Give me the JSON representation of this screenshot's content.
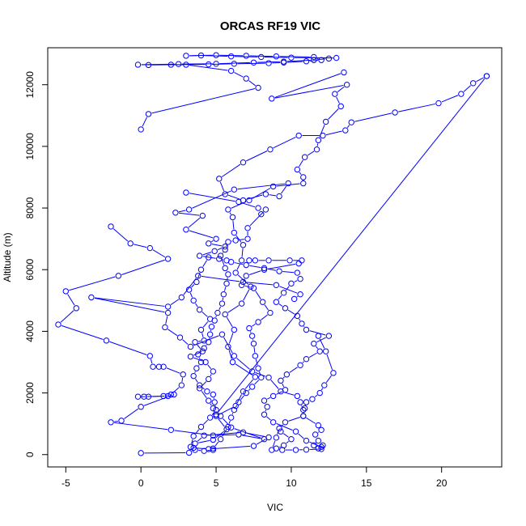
{
  "chart_data": {
    "type": "scatter",
    "title": "ORCAS RF19 VIC",
    "xlabel": "VIC",
    "ylabel": "Altitude (m)",
    "xlim": [
      -6.2,
      24.0
    ],
    "ylim": [
      -400,
      13200
    ],
    "xticks": [
      -5,
      0,
      5,
      10,
      15,
      20
    ],
    "yticks": [
      0,
      2000,
      4000,
      6000,
      8000,
      10000,
      12000
    ],
    "grid": false,
    "style": "points connected by lines (type b)",
    "color": "#0000ff",
    "series": [
      {
        "points": [
          [
            0.0,
            50
          ],
          [
            3.2,
            60
          ],
          [
            3.5,
            220
          ],
          [
            4.5,
            180
          ],
          [
            7.5,
            280
          ],
          [
            8.5,
            560
          ],
          [
            6.8,
            720
          ],
          [
            4.2,
            620
          ],
          [
            3.6,
            360
          ],
          [
            4.8,
            480
          ],
          [
            5.7,
            820
          ],
          [
            5.0,
            1250
          ],
          [
            6.3,
            1580
          ],
          [
            6.8,
            2050
          ],
          [
            7.6,
            2520
          ],
          [
            6.1,
            3000
          ],
          [
            5.8,
            3500
          ],
          [
            6.2,
            4050
          ],
          [
            5.6,
            4550
          ],
          [
            6.7,
            4900
          ],
          [
            7.3,
            5450
          ],
          [
            6.3,
            5900
          ],
          [
            6.7,
            6300
          ],
          [
            6.8,
            6800
          ],
          [
            6.2,
            7200
          ],
          [
            6.1,
            7700
          ],
          [
            5.8,
            7950
          ],
          [
            7.2,
            8250
          ],
          [
            8.8,
            8700
          ],
          [
            10.8,
            8800
          ],
          [
            10.8,
            9000
          ],
          [
            10.4,
            9250
          ],
          [
            10.9,
            9650
          ],
          [
            11.7,
            9900
          ],
          [
            11.8,
            10200
          ],
          [
            12.3,
            10800
          ],
          [
            13.3,
            11300
          ],
          [
            12.9,
            11700
          ],
          [
            13.7,
            12000
          ],
          [
            8.7,
            11550
          ],
          [
            13.5,
            12400
          ]
        ]
      },
      {
        "points": [
          [
            23.0,
            12280
          ],
          [
            22.1,
            12050
          ],
          [
            21.3,
            11700
          ],
          [
            19.8,
            11400
          ],
          [
            16.9,
            11100
          ],
          [
            14.0,
            10780
          ],
          [
            13.6,
            10520
          ],
          [
            12.1,
            10350
          ],
          [
            10.5,
            10350
          ],
          [
            8.6,
            9900
          ],
          [
            6.8,
            9480
          ],
          [
            5.2,
            8950
          ],
          [
            5.6,
            8450
          ],
          [
            6.8,
            8250
          ],
          [
            8.3,
            8450
          ],
          [
            9.2,
            8380
          ],
          [
            9.8,
            8800
          ],
          [
            6.2,
            8600
          ],
          [
            3.2,
            7950
          ],
          [
            2.3,
            7850
          ],
          [
            4.1,
            7750
          ],
          [
            3.0,
            7300
          ],
          [
            5.0,
            7000
          ],
          [
            4.5,
            6850
          ],
          [
            5.6,
            6750
          ],
          [
            4.9,
            6600
          ],
          [
            3.9,
            6450
          ],
          [
            5.2,
            6350
          ],
          [
            5.7,
            6300
          ],
          [
            6.0,
            6250
          ],
          [
            7.0,
            6150
          ],
          [
            8.2,
            6050
          ],
          [
            9.2,
            5950
          ],
          [
            10.4,
            5900
          ],
          [
            10.6,
            5700
          ],
          [
            10.0,
            5550
          ],
          [
            9.5,
            5250
          ],
          [
            9.0,
            4950
          ],
          [
            9.6,
            4750
          ],
          [
            10.4,
            4500
          ],
          [
            10.7,
            4250
          ],
          [
            11.0,
            4050
          ],
          [
            12.5,
            3850
          ],
          [
            11.5,
            3600
          ],
          [
            11.9,
            3350
          ],
          [
            11.0,
            3100
          ],
          [
            10.6,
            2900
          ],
          [
            9.7,
            2600
          ],
          [
            9.3,
            2400
          ],
          [
            9.6,
            2100
          ],
          [
            8.8,
            1900
          ],
          [
            8.2,
            1750
          ],
          [
            8.4,
            1550
          ],
          [
            8.2,
            1300
          ],
          [
            8.8,
            1050
          ],
          [
            10.3,
            750
          ],
          [
            11.0,
            450
          ],
          [
            12.0,
            250
          ],
          [
            12.0,
            180
          ],
          [
            11.0,
            160
          ],
          [
            10.3,
            150
          ],
          [
            9.4,
            150
          ],
          [
            9.0,
            200
          ],
          [
            9.5,
            300
          ],
          [
            10.0,
            500
          ],
          [
            9.3,
            750
          ]
        ]
      },
      {
        "points": [
          [
            0.0,
            10550
          ],
          [
            0.5,
            11050
          ],
          [
            7.8,
            11900
          ],
          [
            7.0,
            12200
          ],
          [
            6.0,
            12450
          ],
          [
            3.0,
            12650
          ],
          [
            -0.2,
            12650
          ],
          [
            2.5,
            12670
          ],
          [
            5.0,
            12680
          ],
          [
            7.5,
            12720
          ],
          [
            9.5,
            12750
          ],
          [
            11.5,
            12800
          ],
          [
            12.5,
            12850
          ],
          [
            13.0,
            12870
          ],
          [
            10.0,
            12880
          ],
          [
            8.0,
            12900
          ],
          [
            6.0,
            12920
          ],
          [
            4.0,
            12950
          ],
          [
            3.0,
            12940
          ],
          [
            5.0,
            12960
          ],
          [
            7.0,
            12940
          ],
          [
            9.0,
            12920
          ],
          [
            11.5,
            12900
          ],
          [
            12.0,
            12800
          ],
          [
            11.0,
            12760
          ],
          [
            9.5,
            12720
          ],
          [
            8.5,
            12700
          ],
          [
            6.2,
            12680
          ],
          [
            4.5,
            12660
          ],
          [
            2.0,
            12650
          ],
          [
            0.5,
            12640
          ]
        ]
      },
      {
        "points": [
          [
            -2.0,
            7400
          ],
          [
            -0.7,
            6850
          ],
          [
            0.6,
            6700
          ],
          [
            1.8,
            6350
          ],
          [
            -1.5,
            5800
          ],
          [
            -5.0,
            5300
          ],
          [
            -4.3,
            4750
          ],
          [
            -5.5,
            4220
          ],
          [
            -2.3,
            3700
          ],
          [
            0.6,
            3200
          ],
          [
            0.8,
            2850
          ],
          [
            1.2,
            2850
          ],
          [
            1.5,
            2850
          ],
          [
            2.8,
            2600
          ],
          [
            2.7,
            2250
          ],
          [
            2.0,
            1950
          ],
          [
            1.5,
            1900
          ],
          [
            0.5,
            1880
          ],
          [
            -0.2,
            1880
          ],
          [
            0.2,
            1880
          ],
          [
            1.8,
            1900
          ],
          [
            2.2,
            1950
          ],
          [
            0.0,
            1550
          ],
          [
            -1.3,
            1100
          ],
          [
            -2.0,
            1050
          ],
          [
            2.0,
            800
          ],
          [
            4.8,
            620
          ],
          [
            6.5,
            650
          ],
          [
            8.2,
            500
          ],
          [
            6.0,
            880
          ],
          [
            5.3,
            1250
          ],
          [
            5.0,
            1300
          ],
          [
            4.8,
            1500
          ],
          [
            4.5,
            1750
          ],
          [
            3.9,
            2150
          ],
          [
            4.5,
            2450
          ],
          [
            4.8,
            2700
          ],
          [
            4.3,
            3000
          ],
          [
            3.3,
            3180
          ],
          [
            4.1,
            3350
          ],
          [
            3.6,
            3650
          ],
          [
            4.2,
            3700
          ],
          [
            4.0,
            4050
          ],
          [
            4.6,
            4400
          ],
          [
            3.9,
            4700
          ],
          [
            3.5,
            5000
          ],
          [
            3.2,
            5350
          ],
          [
            3.7,
            5600
          ],
          [
            4.0,
            6000
          ],
          [
            4.5,
            6400
          ]
        ]
      },
      {
        "points": [
          [
            8.3,
            7950
          ],
          [
            7.1,
            7350
          ],
          [
            7.1,
            7000
          ],
          [
            6.3,
            6950
          ],
          [
            5.8,
            6900
          ],
          [
            5.6,
            6650
          ],
          [
            5.3,
            6450
          ],
          [
            5.6,
            6050
          ],
          [
            5.8,
            5850
          ],
          [
            5.7,
            5550
          ],
          [
            5.5,
            5200
          ],
          [
            5.4,
            4900
          ],
          [
            5.1,
            4600
          ],
          [
            4.9,
            4350
          ],
          [
            4.7,
            4150
          ],
          [
            4.6,
            3900
          ],
          [
            4.5,
            3650
          ],
          [
            4.2,
            3450
          ],
          [
            3.8,
            3250
          ],
          [
            4.0,
            3000
          ],
          [
            3.7,
            2800
          ],
          [
            3.5,
            2550
          ],
          [
            3.9,
            2250
          ],
          [
            4.4,
            2050
          ],
          [
            4.8,
            1950
          ],
          [
            4.9,
            1700
          ],
          [
            5.0,
            1450
          ],
          [
            4.6,
            1200
          ],
          [
            4.0,
            900
          ],
          [
            3.5,
            600
          ],
          [
            3.3,
            250
          ],
          [
            3.6,
            150
          ],
          [
            4.2,
            120
          ],
          [
            4.8,
            150
          ]
        ]
      },
      {
        "points": [
          [
            7.2,
            6300
          ],
          [
            7.6,
            6300
          ],
          [
            8.5,
            6300
          ],
          [
            9.9,
            6300
          ],
          [
            10.7,
            6300
          ],
          [
            10.5,
            6200
          ],
          [
            8.2,
            6000
          ],
          [
            7.0,
            5800
          ],
          [
            6.7,
            5500
          ],
          [
            7.5,
            5400
          ],
          [
            8.1,
            4950
          ],
          [
            8.6,
            4600
          ],
          [
            7.8,
            4300
          ],
          [
            7.2,
            4100
          ],
          [
            7.4,
            3850
          ],
          [
            7.5,
            3600
          ],
          [
            7.6,
            3200
          ],
          [
            7.8,
            2800
          ],
          [
            8.0,
            2500
          ],
          [
            7.4,
            2200
          ],
          [
            7.0,
            2000
          ],
          [
            6.5,
            1700
          ],
          [
            6.2,
            1450
          ],
          [
            6.0,
            1200
          ],
          [
            5.8,
            900
          ],
          [
            5.3,
            500
          ],
          [
            4.8,
            200
          ]
        ]
      },
      {
        "points": [
          [
            10.2,
            5050
          ],
          [
            10.6,
            5200
          ],
          [
            9.0,
            5500
          ],
          [
            6.8,
            5600
          ],
          [
            3.8,
            5800
          ],
          [
            2.7,
            5100
          ],
          [
            1.8,
            4800
          ],
          [
            -3.3,
            5100
          ],
          [
            1.8,
            4600
          ],
          [
            1.6,
            4130
          ],
          [
            2.6,
            3800
          ],
          [
            3.3,
            3500
          ],
          [
            5.4,
            3900
          ],
          [
            6.2,
            3200
          ],
          [
            7.4,
            2700
          ],
          [
            8.5,
            2500
          ],
          [
            9.3,
            2050
          ],
          [
            10.4,
            1900
          ],
          [
            10.6,
            1700
          ],
          [
            10.8,
            1450
          ],
          [
            10.8,
            1250
          ],
          [
            9.6,
            1050
          ],
          [
            9.2,
            850
          ],
          [
            9.0,
            550
          ],
          [
            8.7,
            150
          ]
        ]
      },
      {
        "points": [
          [
            11.8,
            3850
          ],
          [
            12.3,
            3350
          ],
          [
            12.8,
            2650
          ],
          [
            12.2,
            2250
          ],
          [
            11.9,
            2000
          ],
          [
            11.4,
            1800
          ],
          [
            11.0,
            1700
          ],
          [
            10.9,
            1500
          ],
          [
            10.8,
            1250
          ],
          [
            11.8,
            950
          ],
          [
            12.0,
            800
          ],
          [
            11.6,
            650
          ],
          [
            11.8,
            450
          ],
          [
            11.5,
            300
          ],
          [
            11.8,
            200
          ],
          [
            12.1,
            300
          ]
        ]
      },
      {
        "points": [
          [
            3.0,
            8500
          ],
          [
            6.5,
            8200
          ],
          [
            7.8,
            8000
          ],
          [
            8.0,
            7800
          ]
        ]
      },
      {
        "points": [
          [
            5.0,
            1300
          ],
          [
            23.0,
            12280
          ]
        ]
      }
    ]
  }
}
